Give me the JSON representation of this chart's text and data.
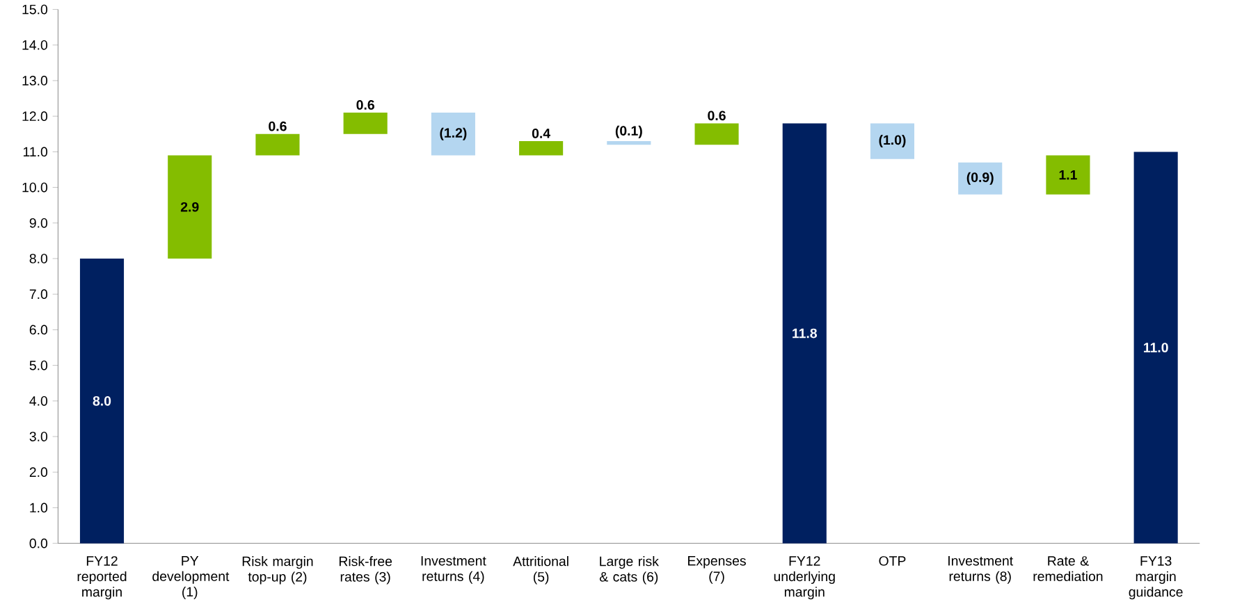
{
  "chart_data": {
    "type": "bar",
    "categories": [
      "FY12 reported margin",
      "PY development (1)",
      "Risk margin top-up (2)",
      "Risk-free rates (3)",
      "Investment returns (4)",
      "Attritional (5)",
      "Large risk & cats (6)",
      "Expenses (7)",
      "FY12 underlying margin",
      "OTP",
      "Investment returns (8)",
      "Rate & remediation",
      "FY13 margin guidance"
    ],
    "values": [
      8.0,
      2.9,
      0.6,
      0.6,
      -1.2,
      0.4,
      -0.1,
      0.6,
      11.8,
      -1.0,
      -0.9,
      1.1,
      11.0
    ],
    "base": [
      0,
      8.0,
      10.9,
      11.5,
      12.1,
      10.9,
      11.3,
      11.2,
      0,
      11.8,
      10.7,
      9.8,
      0
    ],
    "colors": [
      "#002060",
      "#84bd00",
      "#84bd00",
      "#84bd00",
      "#b4d6f0",
      "#84bd00",
      "#b4d6f0",
      "#84bd00",
      "#002060",
      "#b4d6f0",
      "#b4d6f0",
      "#84bd00",
      "#002060"
    ],
    "value_labels": [
      "8.0",
      "2.9",
      "0.6",
      "0.6",
      "(1.2)",
      "0.4",
      "(0.1)",
      "0.6",
      "11.8",
      "(1.0)",
      "(0.9)",
      "1.1",
      "11.0"
    ],
    "ylim": [
      0,
      15
    ],
    "yticks": [
      {
        "value": 0,
        "label": "0.0"
      },
      {
        "value": 1,
        "label": "1.0"
      },
      {
        "value": 2,
        "label": "2.0"
      },
      {
        "value": 3,
        "label": "3.0"
      },
      {
        "value": 4,
        "label": "4.0"
      },
      {
        "value": 5,
        "label": "5.0"
      },
      {
        "value": 6,
        "label": "6.0"
      },
      {
        "value": 7,
        "label": "7.0"
      },
      {
        "value": 8,
        "label": "8.0"
      },
      {
        "value": 9,
        "label": "9.0"
      },
      {
        "value": 10,
        "label": "10.0"
      },
      {
        "value": 11,
        "label": "11.0"
      },
      {
        "value": 12,
        "label": "12.0"
      },
      {
        "value": 13,
        "label": "13.0"
      },
      {
        "value": 14,
        "label": "14.0"
      },
      {
        "value": 15,
        "label": "15.0"
      }
    ]
  }
}
